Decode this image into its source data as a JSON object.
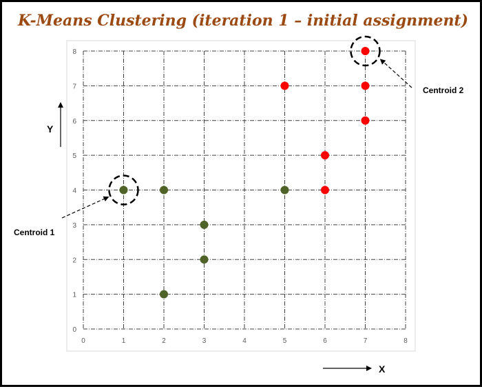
{
  "chart_data": {
    "type": "scatter",
    "title": "K-Means Clustering (iteration 1 – initial assignment)",
    "xlabel": "X",
    "ylabel": "Y",
    "xlim": [
      0,
      8
    ],
    "ylim": [
      0,
      8
    ],
    "x_ticks": [
      "0",
      "1",
      "2",
      "3",
      "4",
      "5",
      "6",
      "7",
      "8"
    ],
    "y_ticks": [
      "0",
      "1",
      "2",
      "3",
      "4",
      "5",
      "6",
      "7",
      "8"
    ],
    "grid": true,
    "series": [
      {
        "color": "#4f6228",
        "points": [
          {
            "x": 1,
            "y": 4
          },
          {
            "x": 2,
            "y": 4
          },
          {
            "x": 5,
            "y": 4
          },
          {
            "x": 3,
            "y": 3
          },
          {
            "x": 3,
            "y": 2
          },
          {
            "x": 2,
            "y": 1
          }
        ]
      },
      {
        "color": "#ff0000",
        "points": [
          {
            "x": 7,
            "y": 8
          },
          {
            "x": 5,
            "y": 7
          },
          {
            "x": 7,
            "y": 7
          },
          {
            "x": 7,
            "y": 6
          },
          {
            "x": 6,
            "y": 5
          },
          {
            "x": 6,
            "y": 4
          }
        ]
      }
    ],
    "annotations": [
      {
        "text": "Centroid 1",
        "x": 1,
        "y": 4
      },
      {
        "text": "Centroid 2",
        "x": 7,
        "y": 8
      }
    ]
  }
}
